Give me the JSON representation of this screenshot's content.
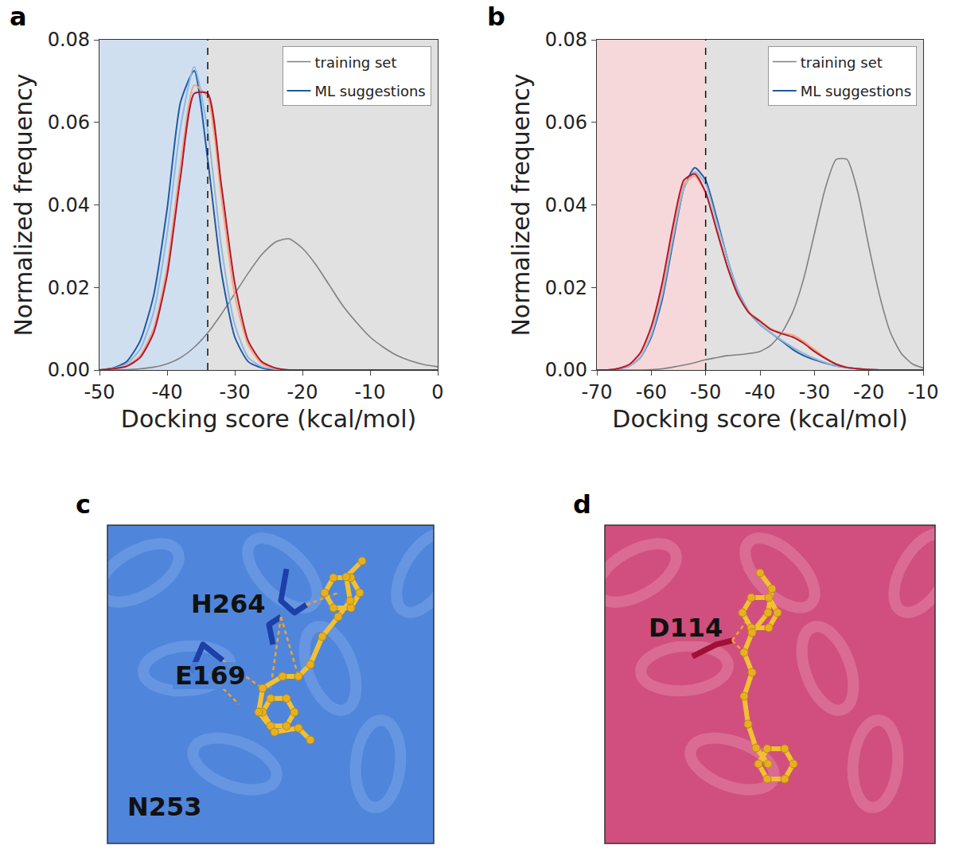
{
  "chart_data": [
    {
      "type": "line",
      "panel_label": "a",
      "x_label": "Docking score (kcal/mol)",
      "y_label": "Normalized frequency",
      "x": [
        -50,
        -48,
        -46,
        -44,
        -42,
        -40,
        -38,
        -36,
        -34,
        -32,
        -30,
        -28,
        -26,
        -24,
        -22,
        -20,
        -18,
        -16,
        -14,
        -12,
        -10,
        -8,
        -6,
        -4,
        -2,
        0
      ],
      "threshold": -34,
      "series": [
        {
          "name": "training set",
          "color": "#808080",
          "values": [
            0,
            0,
            0.0001,
            0.0003,
            0.0007,
            0.0015,
            0.003,
            0.0055,
            0.009,
            0.0135,
            0.0185,
            0.0235,
            0.028,
            0.031,
            0.0318,
            0.0295,
            0.0255,
            0.0205,
            0.0155,
            0.0115,
            0.008,
            0.0055,
            0.0035,
            0.0022,
            0.0013,
            0.0008
          ]
        },
        {
          "name": "ML suggestions",
          "color": "#1f5aa6",
          "values": [
            0,
            0.0005,
            0.002,
            0.007,
            0.018,
            0.039,
            0.065,
            0.0725,
            0.051,
            0.024,
            0.008,
            0.002,
            0.0005,
            0,
            0,
            0,
            0,
            0,
            0,
            0,
            0,
            0,
            0,
            0,
            0,
            0
          ]
        },
        {
          "name": "ML suggestions",
          "color": "#8fb8dc",
          "values": [
            0,
            0.0004,
            0.0015,
            0.005,
            0.014,
            0.033,
            0.059,
            0.0735,
            0.058,
            0.03,
            0.011,
            0.003,
            0.0008,
            0.0002,
            0,
            0,
            0,
            0,
            0,
            0,
            0,
            0,
            0,
            0,
            0,
            0
          ]
        },
        {
          "name": "ML suggestions",
          "color": "#f4a582",
          "values": [
            0,
            0.0003,
            0.001,
            0.0035,
            0.01,
            0.025,
            0.05,
            0.069,
            0.066,
            0.042,
            0.018,
            0.006,
            0.0015,
            0.0004,
            0,
            0,
            0,
            0,
            0,
            0,
            0,
            0,
            0,
            0,
            0,
            0
          ]
        },
        {
          "name": "ML suggestions",
          "color": "#b2182b",
          "values": [
            0,
            0.0003,
            0.0009,
            0.003,
            0.009,
            0.023,
            0.047,
            0.067,
            0.067,
            0.045,
            0.021,
            0.007,
            0.002,
            0.0005,
            0,
            0,
            0,
            0,
            0,
            0,
            0,
            0,
            0,
            0,
            0,
            0
          ]
        }
      ],
      "xlim": [
        -50,
        0
      ],
      "xticks": [
        -50,
        -40,
        -30,
        -20,
        -10,
        0
      ],
      "ylim": [
        0,
        0.08
      ],
      "yticks": [
        {
          "value": 0,
          "label": "0.00"
        },
        {
          "value": 0.02,
          "label": "0.02"
        },
        {
          "value": 0.04,
          "label": "0.04"
        },
        {
          "value": 0.06,
          "label": "0.06"
        },
        {
          "value": 0.08,
          "label": "0.08"
        }
      ],
      "grid": false,
      "legend": "upper right"
    },
    {
      "type": "line",
      "panel_label": "b",
      "x_label": "Docking score (kcal/mol)",
      "y_label": "Normalized frequency",
      "x": [
        -70,
        -68,
        -66,
        -64,
        -62,
        -60,
        -58,
        -56,
        -54,
        -52,
        -50,
        -48,
        -46,
        -44,
        -42,
        -40,
        -38,
        -36,
        -34,
        -32,
        -30,
        -28,
        -26,
        -24,
        -22,
        -20,
        -18,
        -16,
        -14,
        -12,
        -10
      ],
      "threshold": -50,
      "series": [
        {
          "name": "training set",
          "color": "#808080",
          "values": [
            0,
            0,
            0,
            0,
            0,
            0.0001,
            0.0003,
            0.0007,
            0.0012,
            0.0018,
            0.0025,
            0.003,
            0.0035,
            0.0037,
            0.004,
            0.0045,
            0.006,
            0.009,
            0.014,
            0.022,
            0.033,
            0.044,
            0.051,
            0.051,
            0.043,
            0.03,
            0.018,
            0.009,
            0.004,
            0.0015,
            0.0005
          ]
        },
        {
          "name": "ML suggestions",
          "color": "#1f5aa6",
          "values": [
            0,
            0,
            0.0003,
            0.001,
            0.003,
            0.008,
            0.017,
            0.031,
            0.044,
            0.049,
            0.046,
            0.037,
            0.027,
            0.019,
            0.014,
            0.011,
            0.009,
            0.007,
            0.005,
            0.0035,
            0.0025,
            0.0017,
            0.001,
            0.0006,
            0.0003,
            0.0001,
            0,
            0,
            0,
            0,
            0
          ]
        },
        {
          "name": "ML suggestions",
          "color": "#8fb8dc",
          "values": [
            0,
            0,
            0.0003,
            0.001,
            0.003,
            0.0085,
            0.018,
            0.032,
            0.044,
            0.048,
            0.045,
            0.036,
            0.027,
            0.019,
            0.014,
            0.011,
            0.009,
            0.0072,
            0.0055,
            0.004,
            0.0028,
            0.0018,
            0.001,
            0.0006,
            0.0003,
            0.0001,
            0,
            0,
            0,
            0,
            0
          ]
        },
        {
          "name": "ML suggestions",
          "color": "#f4a582",
          "values": [
            0,
            0,
            0.0004,
            0.0013,
            0.004,
            0.01,
            0.02,
            0.034,
            0.045,
            0.047,
            0.043,
            0.034,
            0.025,
            0.018,
            0.014,
            0.012,
            0.01,
            0.009,
            0.0085,
            0.007,
            0.005,
            0.003,
            0.0015,
            0.0007,
            0.0003,
            0.0001,
            0,
            0,
            0,
            0,
            0
          ]
        },
        {
          "name": "ML suggestions",
          "color": "#b2182b",
          "values": [
            0,
            0,
            0.0004,
            0.0014,
            0.0042,
            0.0105,
            0.021,
            0.035,
            0.046,
            0.0475,
            0.043,
            0.034,
            0.025,
            0.018,
            0.0138,
            0.0118,
            0.0098,
            0.0088,
            0.008,
            0.0065,
            0.0045,
            0.0028,
            0.0014,
            0.0006,
            0.0003,
            0.0001,
            0,
            0,
            0,
            0,
            0
          ]
        }
      ],
      "xlim": [
        -70,
        -10
      ],
      "xticks": [
        -70,
        -60,
        -50,
        -40,
        -30,
        -20,
        -10
      ],
      "ylim": [
        0,
        0.08
      ],
      "yticks": [
        {
          "value": 0,
          "label": "0.00"
        },
        {
          "value": 0.02,
          "label": "0.02"
        },
        {
          "value": 0.04,
          "label": "0.04"
        },
        {
          "value": 0.06,
          "label": "0.06"
        },
        {
          "value": 0.08,
          "label": "0.08"
        }
      ],
      "grid": false,
      "legend": "upper right"
    }
  ],
  "panels": [
    {
      "panel_label": "c",
      "residues": [
        "H264",
        "E169",
        "N253"
      ]
    },
    {
      "panel_label": "d",
      "residues": [
        "D114"
      ]
    }
  ]
}
